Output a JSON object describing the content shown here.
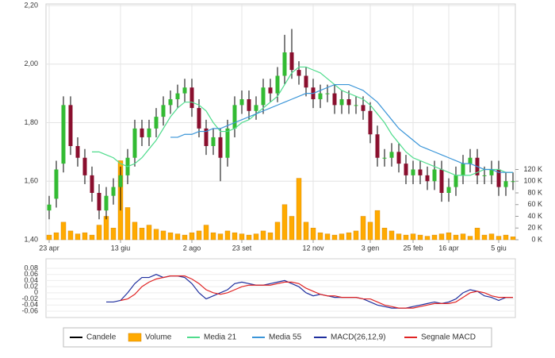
{
  "chart_data": [
    {
      "type": "candlestick",
      "categories": [
        "23 apr",
        null,
        null,
        null,
        null,
        null,
        null,
        null,
        null,
        null,
        "13 giu",
        null,
        null,
        null,
        null,
        null,
        null,
        null,
        null,
        null,
        "2 ago",
        null,
        null,
        null,
        null,
        null,
        null,
        "23 set",
        null,
        null,
        null,
        null,
        null,
        null,
        null,
        null,
        null,
        "12 nov",
        null,
        null,
        null,
        null,
        null,
        null,
        null,
        "3 gen",
        null,
        null,
        null,
        null,
        null,
        "25 feb",
        null,
        null,
        null,
        null,
        "16 apr",
        null,
        null,
        null,
        null,
        null,
        null,
        "5 giu",
        null,
        null
      ],
      "ylim": [
        1.4,
        2.2
      ],
      "yticks": [
        {
          "value": 1.4,
          "label": "1,40"
        },
        {
          "value": 1.6,
          "label": "1,60"
        },
        {
          "value": 1.8,
          "label": "1,80"
        },
        {
          "value": 2.0,
          "label": "2,00"
        },
        {
          "value": 2.2,
          "label": "2,20"
        }
      ],
      "y2lim": [
        0,
        400000
      ],
      "y2ticks": [
        {
          "value": 0,
          "label": "0 K"
        },
        {
          "value": 20000,
          "label": "20 K"
        },
        {
          "value": 40000,
          "label": "40 K"
        },
        {
          "value": 60000,
          "label": "60 K"
        },
        {
          "value": 80000,
          "label": "80 K"
        },
        {
          "value": 100000,
          "label": "100 K"
        },
        {
          "value": 120000,
          "label": "120 K"
        }
      ],
      "grid": true,
      "candles": {
        "name": "Candele",
        "color": "#000000",
        "up_color": "#33bb33",
        "down_color": "#8a0f2e",
        "open": [
          1.5,
          1.54,
          1.66,
          1.86,
          1.72,
          1.68,
          1.62,
          1.56,
          1.5,
          1.55,
          1.58,
          1.62,
          1.68,
          1.78,
          1.75,
          1.78,
          1.82,
          1.86,
          1.88,
          1.9,
          1.92,
          1.85,
          1.78,
          1.72,
          1.75,
          1.68,
          1.78,
          1.86,
          1.88,
          1.84,
          1.86,
          1.92,
          1.9,
          1.96,
          2.04,
          1.98,
          1.96,
          1.92,
          1.88,
          1.9,
          1.9,
          1.86,
          1.88,
          1.86,
          1.86,
          1.84,
          1.76,
          1.68,
          1.68,
          1.7,
          1.66,
          1.62,
          1.64,
          1.62,
          1.6,
          1.64,
          1.56,
          1.58,
          1.62,
          1.66,
          1.68,
          1.62,
          1.62,
          1.64,
          1.58,
          1.6
        ],
        "high": [
          1.55,
          1.67,
          1.89,
          1.89,
          1.75,
          1.71,
          1.65,
          1.59,
          1.58,
          1.61,
          1.65,
          1.71,
          1.81,
          1.81,
          1.81,
          1.85,
          1.89,
          1.91,
          1.93,
          1.95,
          1.95,
          1.88,
          1.81,
          1.78,
          1.78,
          1.81,
          1.89,
          1.91,
          1.91,
          1.89,
          1.95,
          1.95,
          1.99,
          2.1,
          2.12,
          2.01,
          1.99,
          1.95,
          1.93,
          1.93,
          1.93,
          1.91,
          1.91,
          1.89,
          1.89,
          1.87,
          1.79,
          1.71,
          1.73,
          1.73,
          1.69,
          1.67,
          1.67,
          1.65,
          1.67,
          1.67,
          1.61,
          1.65,
          1.69,
          1.71,
          1.71,
          1.65,
          1.67,
          1.67,
          1.63,
          1.63
        ],
        "low": [
          1.47,
          1.51,
          1.63,
          1.69,
          1.65,
          1.59,
          1.53,
          1.47,
          1.47,
          1.52,
          1.5,
          1.59,
          1.65,
          1.72,
          1.72,
          1.75,
          1.79,
          1.83,
          1.85,
          1.87,
          1.82,
          1.75,
          1.69,
          1.69,
          1.6,
          1.65,
          1.75,
          1.83,
          1.81,
          1.81,
          1.83,
          1.87,
          1.87,
          1.93,
          1.95,
          1.93,
          1.89,
          1.85,
          1.85,
          1.87,
          1.83,
          1.83,
          1.83,
          1.83,
          1.81,
          1.73,
          1.65,
          1.65,
          1.65,
          1.63,
          1.59,
          1.59,
          1.59,
          1.57,
          1.57,
          1.53,
          1.53,
          1.55,
          1.59,
          1.63,
          1.59,
          1.59,
          1.59,
          1.55,
          1.55,
          1.57
        ],
        "close": [
          1.52,
          1.64,
          1.86,
          1.72,
          1.68,
          1.62,
          1.56,
          1.5,
          1.55,
          1.58,
          1.62,
          1.68,
          1.78,
          1.75,
          1.78,
          1.82,
          1.86,
          1.88,
          1.9,
          1.92,
          1.85,
          1.78,
          1.72,
          1.75,
          1.68,
          1.78,
          1.86,
          1.88,
          1.84,
          1.86,
          1.92,
          1.9,
          1.96,
          2.04,
          1.98,
          1.96,
          1.92,
          1.88,
          1.9,
          1.9,
          1.86,
          1.88,
          1.86,
          1.86,
          1.84,
          1.76,
          1.68,
          1.68,
          1.7,
          1.66,
          1.62,
          1.64,
          1.62,
          1.6,
          1.64,
          1.56,
          1.58,
          1.62,
          1.66,
          1.68,
          1.62,
          1.62,
          1.64,
          1.58,
          1.6,
          1.6
        ]
      },
      "series": [
        {
          "name": "Volume",
          "type": "bar",
          "axis": "y2",
          "color": "#ffaa00",
          "values": [
            8000,
            12000,
            30000,
            15000,
            10000,
            12000,
            8000,
            25000,
            40000,
            20000,
            135000,
            55000,
            30000,
            20000,
            25000,
            18000,
            15000,
            12000,
            10000,
            8000,
            12000,
            15000,
            25000,
            12000,
            10000,
            15000,
            12000,
            10000,
            8000,
            10000,
            15000,
            12000,
            30000,
            60000,
            40000,
            105000,
            30000,
            20000,
            12000,
            10000,
            8000,
            10000,
            12000,
            15000,
            40000,
            30000,
            50000,
            20000,
            15000,
            10000,
            8000,
            10000,
            8000,
            6000,
            8000,
            10000,
            12000,
            8000,
            10000,
            6000,
            20000,
            8000,
            10000,
            6000,
            8000,
            5000
          ]
        },
        {
          "name": "Media 21",
          "type": "line",
          "color": "#4fdc8c",
          "values": [
            null,
            null,
            null,
            null,
            null,
            null,
            1.7,
            1.7,
            1.69,
            1.68,
            1.66,
            1.65,
            1.66,
            1.68,
            1.71,
            1.74,
            1.78,
            1.82,
            1.85,
            1.87,
            1.87,
            1.86,
            1.84,
            1.8,
            1.77,
            1.77,
            1.78,
            1.8,
            1.81,
            1.83,
            1.85,
            1.87,
            1.89,
            1.93,
            1.97,
            1.99,
            1.99,
            1.98,
            1.97,
            1.95,
            1.93,
            1.91,
            1.9,
            1.89,
            1.88,
            1.86,
            1.83,
            1.8,
            1.76,
            1.73,
            1.7,
            1.68,
            1.67,
            1.66,
            1.65,
            1.64,
            1.63,
            1.62,
            1.62,
            1.62,
            1.63,
            1.64,
            1.64,
            1.64,
            1.63,
            1.63
          ]
        },
        {
          "name": "Media 55",
          "type": "line",
          "color": "#3a95d8",
          "values": [
            null,
            null,
            null,
            null,
            null,
            null,
            null,
            null,
            null,
            null,
            null,
            null,
            null,
            null,
            null,
            null,
            null,
            1.75,
            1.75,
            1.76,
            1.76,
            1.77,
            1.77,
            1.78,
            1.78,
            1.79,
            1.8,
            1.81,
            1.82,
            1.83,
            1.84,
            1.85,
            1.86,
            1.87,
            1.88,
            1.89,
            1.9,
            1.9,
            1.91,
            1.92,
            1.93,
            1.93,
            1.93,
            1.92,
            1.91,
            1.89,
            1.87,
            1.84,
            1.81,
            1.78,
            1.76,
            1.74,
            1.72,
            1.71,
            1.7,
            1.69,
            1.68,
            1.67,
            1.66,
            1.66,
            1.65,
            1.64,
            1.64,
            1.63,
            1.63,
            1.63
          ]
        }
      ]
    },
    {
      "type": "line",
      "ylim": [
        -0.06,
        0.08
      ],
      "yticks": [
        -0.06,
        -0.04,
        -0.02,
        0,
        0.02,
        0.04,
        0.06,
        0.08
      ],
      "series": [
        {
          "name": "MACD(26,12,9)",
          "color": "#1f2f9e",
          "values": [
            null,
            null,
            null,
            null,
            null,
            null,
            null,
            null,
            -0.03,
            -0.03,
            -0.025,
            0.0,
            0.03,
            0.05,
            0.05,
            0.06,
            0.05,
            0.055,
            0.055,
            0.05,
            0.03,
            0.0,
            -0.02,
            -0.01,
            0.0,
            0.01,
            0.03,
            0.035,
            0.03,
            0.025,
            0.025,
            0.03,
            0.035,
            0.04,
            0.03,
            0.02,
            0.0,
            -0.01,
            -0.005,
            -0.01,
            -0.015,
            -0.015,
            -0.015,
            -0.015,
            -0.02,
            -0.03,
            -0.04,
            -0.045,
            -0.05,
            -0.05,
            -0.05,
            -0.045,
            -0.04,
            -0.035,
            -0.03,
            -0.035,
            -0.03,
            -0.02,
            0.0,
            0.01,
            0.005,
            -0.01,
            -0.015,
            -0.025,
            -0.015,
            -0.015
          ]
        },
        {
          "name": "Segnale MACD",
          "color": "#e02424",
          "values": [
            null,
            null,
            null,
            null,
            null,
            null,
            null,
            null,
            null,
            null,
            -0.025,
            -0.02,
            -0.005,
            0.02,
            0.035,
            0.045,
            0.05,
            0.055,
            0.055,
            0.055,
            0.045,
            0.03,
            0.01,
            0.0,
            -0.005,
            0.0,
            0.01,
            0.02,
            0.025,
            0.025,
            0.025,
            0.025,
            0.03,
            0.035,
            0.035,
            0.03,
            0.015,
            0.005,
            -0.005,
            -0.01,
            -0.01,
            -0.015,
            -0.015,
            -0.015,
            -0.02,
            -0.02,
            -0.03,
            -0.04,
            -0.045,
            -0.05,
            -0.05,
            -0.05,
            -0.045,
            -0.04,
            -0.035,
            -0.035,
            -0.035,
            -0.03,
            -0.015,
            0.0,
            0.005,
            0.0,
            -0.01,
            -0.015,
            -0.015,
            -0.015
          ]
        }
      ]
    }
  ]
}
